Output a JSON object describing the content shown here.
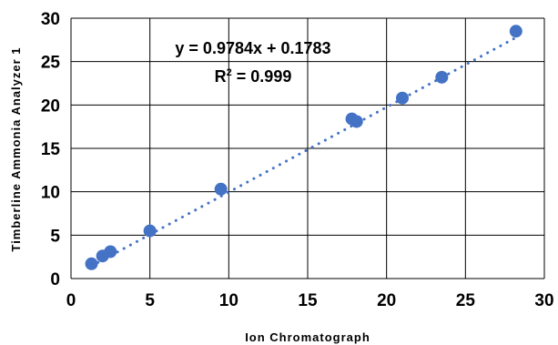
{
  "chart_data": {
    "type": "scatter",
    "xlabel": "Ion Chromatograph",
    "ylabel": "Timberline Ammonia Analyzer 1",
    "xlim": [
      0,
      30
    ],
    "ylim": [
      0,
      30
    ],
    "x_ticks": [
      "0",
      "5",
      "10",
      "15",
      "20",
      "25",
      "30"
    ],
    "y_ticks": [
      "0",
      "5",
      "10",
      "15",
      "20",
      "25",
      "30"
    ],
    "grid": true,
    "legend": "none",
    "series": [
      {
        "x": [
          1.3,
          2.0,
          2.5,
          5.0,
          9.5,
          17.8,
          18.1,
          21.0,
          23.5,
          28.2
        ],
        "y": [
          1.7,
          2.6,
          3.1,
          5.5,
          10.3,
          18.4,
          18.1,
          20.8,
          23.2,
          28.5
        ],
        "color": "#4472c4"
      }
    ],
    "trendline": {
      "type": "linear",
      "slope": 0.9784,
      "intercept": 0.1783,
      "style": "dotted",
      "color": "#4472c4",
      "equation_label": "y = 0.9784x + 0.1783",
      "r2_prefix": "R",
      "r2_sup": "2",
      "r2_value": " = 0.999"
    },
    "colors": {
      "points": "#4472c4",
      "grid": "#000000"
    }
  }
}
